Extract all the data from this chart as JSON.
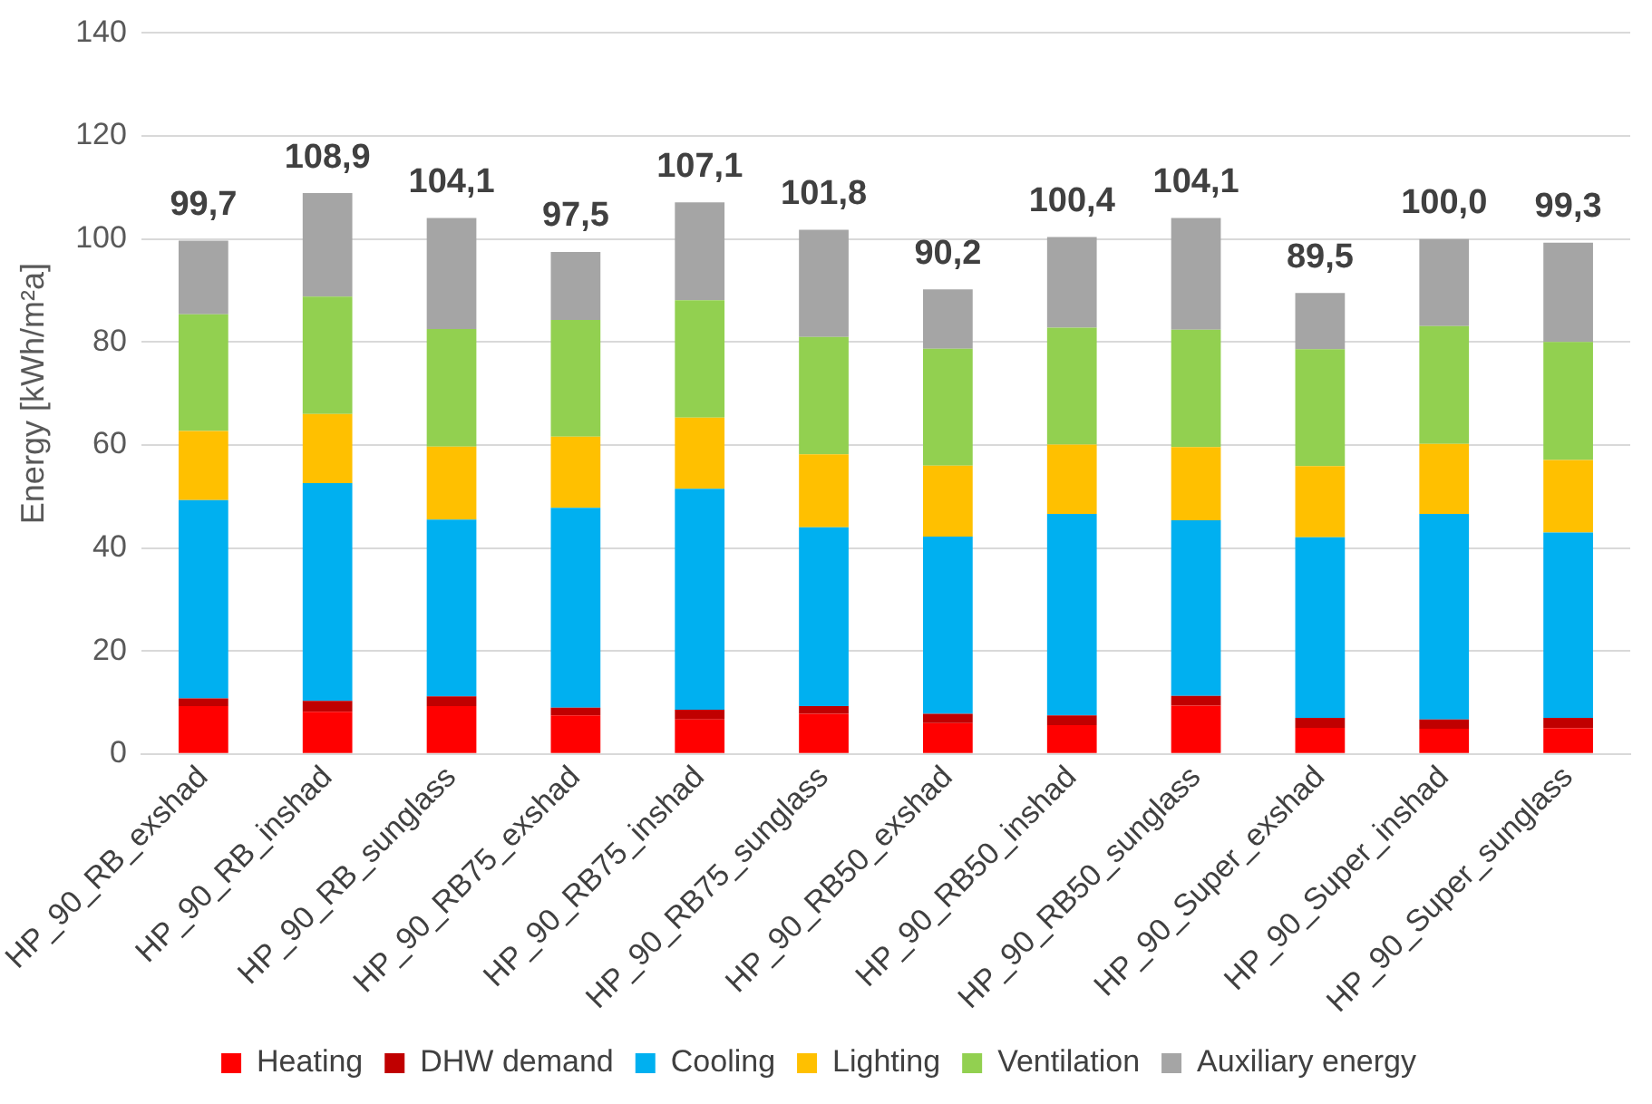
{
  "chart_data": {
    "type": "bar",
    "stacked": true,
    "ylabel": "Energy [kWh/m²a]",
    "categories": [
      "HP_90_RB_exshad",
      "HP_90_RB_inshad",
      "HP_90_RB_sunglass",
      "HP_90_RB75_exshad",
      "HP_90_RB75_inshad",
      "HP_90_RB75_sunglass",
      "HP_90_RB50_exshad",
      "HP_90_RB50_inshad",
      "HP_90_RB50_sunglass",
      "HP_90_Super_exshad",
      "HP_90_Super_inshad",
      "HP_90_Super_sunglass"
    ],
    "series": [
      {
        "name": "Heating",
        "color": "#ff0000",
        "values": [
          9.3,
          8.2,
          9.3,
          7.5,
          6.7,
          7.8,
          6.0,
          5.6,
          9.4,
          5.1,
          4.9,
          5.0
        ]
      },
      {
        "name": "DHW demand",
        "color": "#c00000",
        "values": [
          1.5,
          2.1,
          1.9,
          1.5,
          1.9,
          1.5,
          1.8,
          1.9,
          1.9,
          1.9,
          1.8,
          2.0
        ]
      },
      {
        "name": "Cooling",
        "color": "#00b0f0",
        "values": [
          38.5,
          42.3,
          34.3,
          38.8,
          42.9,
          34.7,
          34.4,
          39.1,
          34.1,
          35.1,
          39.9,
          36.0
        ]
      },
      {
        "name": "Lighting",
        "color": "#ffc000",
        "values": [
          13.4,
          13.4,
          14.2,
          13.8,
          13.8,
          14.2,
          13.8,
          13.5,
          14.2,
          13.8,
          13.6,
          14.1
        ]
      },
      {
        "name": "Ventilation",
        "color": "#92d050",
        "values": [
          22.7,
          22.8,
          22.8,
          22.7,
          22.8,
          22.8,
          22.7,
          22.7,
          22.8,
          22.7,
          22.9,
          22.9
        ]
      },
      {
        "name": "Auxiliary energy",
        "color": "#a5a5a5",
        "values": [
          14.3,
          20.1,
          21.6,
          13.2,
          19.0,
          20.8,
          11.5,
          17.6,
          21.7,
          10.9,
          16.9,
          19.3
        ]
      }
    ],
    "totals": [
      "99,7",
      "108,9",
      "104,1",
      "97,5",
      "107,1",
      "101,8",
      "90,2",
      "100,4",
      "104,1",
      "89,5",
      "100,0",
      "99,3"
    ],
    "ylim": [
      0,
      140
    ],
    "yticks": [
      0,
      20,
      40,
      60,
      80,
      100,
      120,
      140
    ],
    "grid": "y",
    "legend": "bottom"
  }
}
